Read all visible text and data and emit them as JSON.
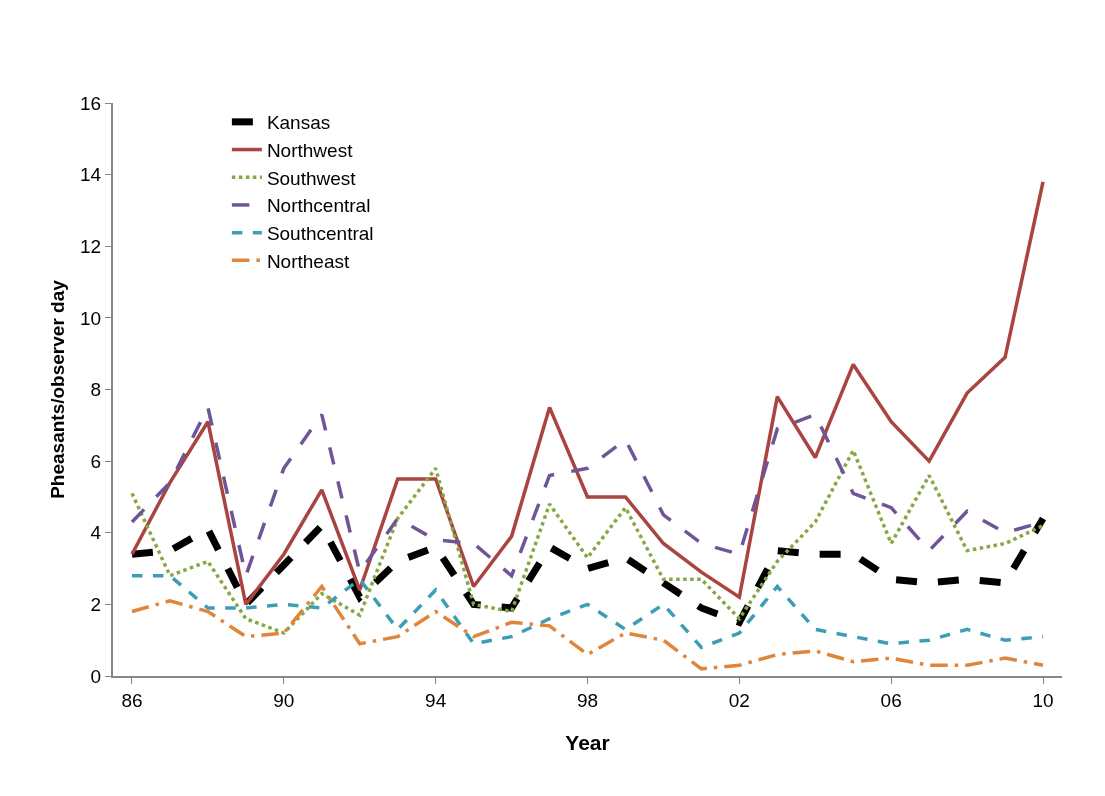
{
  "chart_data": {
    "type": "line",
    "xlabel": "Year",
    "ylabel": "Pheasants/observer day",
    "x": [
      1986,
      1987,
      1988,
      1989,
      1990,
      1991,
      1992,
      1993,
      1994,
      1995,
      1996,
      1997,
      1998,
      1999,
      2000,
      2001,
      2002,
      2003,
      2004,
      2005,
      2006,
      2007,
      2008,
      2009,
      2010
    ],
    "xlim": [
      1985.5,
      2010.5
    ],
    "xticks": [
      {
        "value": 1986,
        "label": "86"
      },
      {
        "value": 1990,
        "label": "90"
      },
      {
        "value": 1994,
        "label": "94"
      },
      {
        "value": 1998,
        "label": "98"
      },
      {
        "value": 2002,
        "label": "02"
      },
      {
        "value": 2006,
        "label": "06"
      },
      {
        "value": 2010,
        "label": "10"
      }
    ],
    "ylim": [
      0,
      16
    ],
    "yticks": [
      0,
      2,
      4,
      6,
      8,
      10,
      12,
      14,
      16
    ],
    "grid": false,
    "legend": "top left",
    "marker": "none",
    "series": [
      {
        "name": "Kansas",
        "color": "#000000",
        "line_style": "dashed",
        "values": [
          3.4,
          3.5,
          4.1,
          2.0,
          3.1,
          4.2,
          2.2,
          3.2,
          3.6,
          2.0,
          1.9,
          3.6,
          3.0,
          3.3,
          2.6,
          1.9,
          1.5,
          3.5,
          3.4,
          3.4,
          2.7,
          2.6,
          2.7,
          2.6,
          4.4
        ]
      },
      {
        "name": "Northwest",
        "color": "#a94440",
        "line_style": "solid",
        "values": [
          3.4,
          5.4,
          7.1,
          2.0,
          3.4,
          5.2,
          2.4,
          5.5,
          5.5,
          2.5,
          3.9,
          7.5,
          5.0,
          5.0,
          3.7,
          2.9,
          2.2,
          7.8,
          6.1,
          8.7,
          7.1,
          6.0,
          7.9,
          8.9,
          13.8
        ]
      },
      {
        "name": "Southwest",
        "color": "#86a844",
        "line_style": "dotted",
        "values": [
          5.1,
          2.8,
          3.2,
          1.6,
          1.2,
          2.3,
          1.7,
          4.4,
          5.8,
          2.0,
          1.8,
          4.8,
          3.3,
          4.7,
          2.7,
          2.7,
          1.6,
          3.2,
          4.3,
          6.3,
          3.7,
          5.6,
          3.5,
          3.7,
          4.2
        ]
      },
      {
        "name": "Northcentral",
        "color": "#6f5597",
        "line_style": "dashed",
        "values": [
          4.3,
          5.4,
          7.5,
          2.8,
          5.8,
          7.3,
          2.9,
          4.4,
          3.8,
          3.7,
          2.8,
          5.6,
          5.8,
          6.6,
          4.5,
          3.7,
          3.4,
          6.9,
          7.3,
          5.1,
          4.7,
          3.5,
          4.6,
          4.0,
          4.3
        ]
      },
      {
        "name": "Southcentral",
        "color": "#3c9db5",
        "line_style": "dashed",
        "values": [
          2.8,
          2.8,
          1.9,
          1.9,
          2.0,
          1.9,
          2.7,
          1.3,
          2.4,
          0.9,
          1.1,
          1.6,
          2.0,
          1.3,
          2.0,
          0.8,
          1.2,
          2.5,
          1.3,
          1.1,
          0.9,
          1.0,
          1.3,
          1.0,
          1.1
        ]
      },
      {
        "name": "Northeast",
        "color": "#e0853a",
        "line_style": "dashed",
        "values": [
          1.8,
          2.1,
          1.8,
          1.1,
          1.2,
          2.5,
          0.9,
          1.1,
          1.8,
          1.1,
          1.5,
          1.4,
          0.6,
          1.2,
          1.0,
          0.2,
          0.3,
          0.6,
          0.7,
          0.4,
          0.5,
          0.3,
          0.3,
          0.5,
          0.3
        ]
      }
    ]
  }
}
